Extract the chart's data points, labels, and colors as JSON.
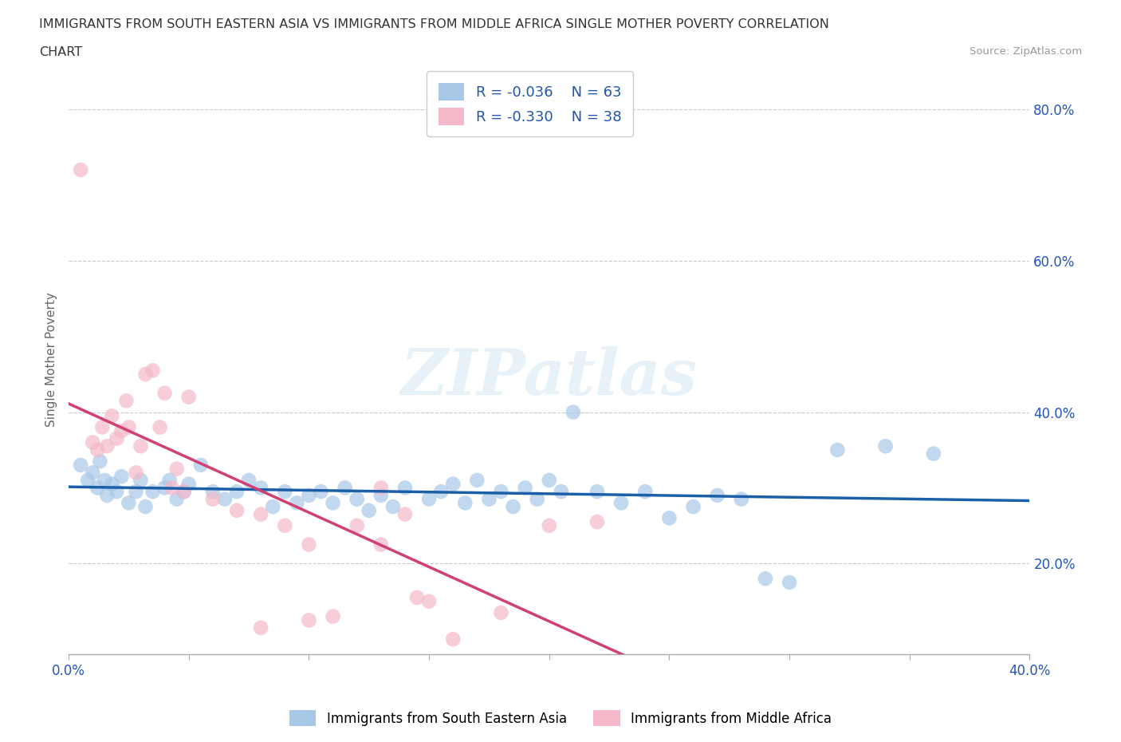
{
  "title_line1": "IMMIGRANTS FROM SOUTH EASTERN ASIA VS IMMIGRANTS FROM MIDDLE AFRICA SINGLE MOTHER POVERTY CORRELATION",
  "title_line2": "CHART",
  "source_text": "Source: ZipAtlas.com",
  "ylabel": "Single Mother Poverty",
  "xlim": [
    0.0,
    0.4
  ],
  "ylim": [
    0.08,
    0.86
  ],
  "xticks": [
    0.0,
    0.05,
    0.1,
    0.15,
    0.2,
    0.25,
    0.3,
    0.35,
    0.4
  ],
  "yticks_right": [
    0.2,
    0.4,
    0.6,
    0.8
  ],
  "ytick_right_labels": [
    "20.0%",
    "40.0%",
    "60.0%",
    "80.0%"
  ],
  "watermark": "ZIPatlas",
  "legend_R1": "R = -0.036",
  "legend_N1": "N = 63",
  "legend_R2": "R = -0.330",
  "legend_N2": "N = 38",
  "color_blue": "#a8c8e8",
  "color_pink": "#f4b8c8",
  "color_trend_blue": "#1a5fa8",
  "color_trend_pink": "#d04070",
  "color_trend_gray": "#e0b0c0",
  "legend_label1": "Immigrants from South Eastern Asia",
  "legend_label2": "Immigrants from Middle Africa",
  "blue_x": [
    0.005,
    0.008,
    0.01,
    0.012,
    0.013,
    0.015,
    0.016,
    0.018,
    0.02,
    0.022,
    0.025,
    0.028,
    0.03,
    0.032,
    0.035,
    0.04,
    0.042,
    0.045,
    0.048,
    0.05,
    0.055,
    0.06,
    0.065,
    0.07,
    0.075,
    0.08,
    0.085,
    0.09,
    0.095,
    0.1,
    0.105,
    0.11,
    0.115,
    0.12,
    0.125,
    0.13,
    0.135,
    0.14,
    0.15,
    0.155,
    0.16,
    0.165,
    0.17,
    0.175,
    0.18,
    0.185,
    0.19,
    0.195,
    0.2,
    0.205,
    0.21,
    0.22,
    0.23,
    0.24,
    0.25,
    0.26,
    0.27,
    0.28,
    0.29,
    0.3,
    0.32,
    0.34,
    0.36
  ],
  "blue_y": [
    0.33,
    0.31,
    0.32,
    0.3,
    0.335,
    0.31,
    0.29,
    0.305,
    0.295,
    0.315,
    0.28,
    0.295,
    0.31,
    0.275,
    0.295,
    0.3,
    0.31,
    0.285,
    0.295,
    0.305,
    0.33,
    0.295,
    0.285,
    0.295,
    0.31,
    0.3,
    0.275,
    0.295,
    0.28,
    0.29,
    0.295,
    0.28,
    0.3,
    0.285,
    0.27,
    0.29,
    0.275,
    0.3,
    0.285,
    0.295,
    0.305,
    0.28,
    0.31,
    0.285,
    0.295,
    0.275,
    0.3,
    0.285,
    0.31,
    0.295,
    0.4,
    0.295,
    0.28,
    0.295,
    0.26,
    0.275,
    0.29,
    0.285,
    0.18,
    0.175,
    0.35,
    0.355,
    0.345
  ],
  "pink_x": [
    0.005,
    0.01,
    0.012,
    0.014,
    0.016,
    0.018,
    0.02,
    0.022,
    0.024,
    0.025,
    0.028,
    0.03,
    0.032,
    0.035,
    0.038,
    0.04,
    0.043,
    0.045,
    0.048,
    0.05,
    0.06,
    0.07,
    0.08,
    0.09,
    0.1,
    0.11,
    0.12,
    0.13,
    0.14,
    0.15,
    0.16,
    0.18,
    0.2,
    0.22,
    0.13,
    0.145,
    0.08,
    0.1
  ],
  "pink_y": [
    0.72,
    0.36,
    0.35,
    0.38,
    0.355,
    0.395,
    0.365,
    0.375,
    0.415,
    0.38,
    0.32,
    0.355,
    0.45,
    0.455,
    0.38,
    0.425,
    0.3,
    0.325,
    0.295,
    0.42,
    0.285,
    0.27,
    0.265,
    0.25,
    0.225,
    0.13,
    0.25,
    0.3,
    0.265,
    0.15,
    0.1,
    0.135,
    0.25,
    0.255,
    0.225,
    0.155,
    0.115,
    0.125
  ],
  "trend_blue_slope": -0.036,
  "trend_pink_slope": -0.33
}
